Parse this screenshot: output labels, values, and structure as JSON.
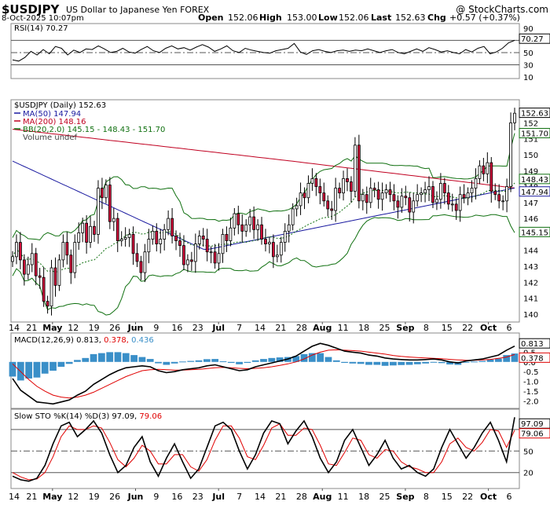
{
  "header": {
    "symbol": "$USDJPY",
    "name": "US Dollar to Japanese Yen FOREX",
    "copyright": "@ StockCharts.com",
    "date": "8-Oct-2025 10:07pm",
    "open_label": "Open",
    "open": "152.06",
    "high_label": "High",
    "high": "153.00",
    "low_label": "Low",
    "low": "152.06",
    "last_label": "Last",
    "last": "152.63",
    "chg_label": "Chg",
    "chg": "+0.57 (+0.37%)"
  },
  "colors": {
    "up_candle": "#ffffff",
    "down_candle": "#d0103a",
    "ma50": "#1a1aa0",
    "ma200": "#c00020",
    "bb": "#107010",
    "macd_line": "#000000",
    "signal_line": "#e00000",
    "histogram": "#3a8fc8",
    "last_marker": "#ffff66"
  },
  "chart_data": [
    {
      "type": "line",
      "panel": "rsi",
      "legend": "RSI(14) 70.27",
      "last_label": "70.27",
      "yticks": [
        "90",
        "70",
        "50",
        "30",
        "10"
      ],
      "ylim": [
        10,
        95
      ],
      "reference_lines": [
        70,
        50,
        30
      ],
      "values": [
        38,
        36,
        42,
        52,
        46,
        55,
        48,
        60,
        57,
        46,
        54,
        50,
        56,
        55,
        61,
        56,
        50,
        52,
        57,
        51,
        49,
        55,
        60,
        53,
        50,
        57,
        61,
        56,
        58,
        54,
        59,
        63,
        59,
        52,
        56,
        61,
        53,
        50,
        57,
        54,
        52,
        50,
        49,
        53,
        55,
        57,
        65,
        51,
        47,
        53,
        55,
        52,
        50,
        53,
        54,
        52,
        54,
        53,
        56,
        53,
        50,
        53,
        55,
        50,
        48,
        52,
        56,
        52,
        58,
        55,
        51,
        53,
        50,
        48,
        55,
        51,
        57,
        60,
        48,
        51,
        57,
        66,
        70
      ]
    },
    {
      "type": "candlestick",
      "panel": "price",
      "legend": {
        "title": "$USDJPY (Daily) 152.63",
        "ma50": "MA(50) 147.94",
        "ma200": "MA(200) 148.16",
        "bb": "BB(20,2.0) 145.15 - 148.43 - 151.70",
        "volume": "Volume undef"
      },
      "yticks": [
        "152",
        "151",
        "150",
        "149",
        "148",
        "147",
        "146",
        "144",
        "143",
        "142",
        "141",
        "140"
      ],
      "ylim": [
        139.6,
        153.3
      ],
      "last_labels": {
        "price": "152.63",
        "bb_upper": "151.70",
        "bb_mid": "148.43",
        "ma50": "147.94",
        "bb_lower": "145.15"
      },
      "close": [
        143.6,
        144.5,
        143.4,
        142.5,
        143.1,
        143.8,
        142.4,
        142.3,
        140.8,
        140.5,
        142.9,
        141.8,
        143.4,
        144.5,
        143.7,
        142.6,
        144.5,
        145.1,
        145.7,
        144.5,
        145.5,
        145.0,
        147.9,
        147.3,
        148.1,
        145.8,
        146.0,
        144.6,
        144.7,
        144.8,
        145.0,
        143.8,
        143.3,
        142.6,
        143.9,
        144.7,
        145.2,
        144.4,
        144.7,
        145.3,
        146.0,
        144.9,
        144.6,
        144.3,
        143.1,
        143.4,
        143.3,
        144.4,
        144.9,
        144.7,
        143.9,
        143.9,
        143.2,
        143.8,
        145.0,
        144.6,
        145.4,
        146.3,
        145.6,
        145.2,
        145.6,
        146.1,
        145.3,
        145.6,
        144.7,
        144.4,
        144.5,
        143.6,
        143.7,
        144.5,
        145.2,
        145.6,
        146.6,
        146.8,
        147.6,
        147.3,
        148.2,
        148.5,
        148.0,
        147.6,
        147.1,
        146.6,
        146.5,
        147.9,
        147.6,
        148.5,
        148.3,
        147.7,
        150.6,
        147.1,
        147.5,
        147.0,
        147.9,
        147.8,
        147.2,
        147.6,
        147.8,
        147.5,
        147.1,
        146.7,
        147.4,
        147.3,
        146.4,
        147.1,
        147.5,
        147.6,
        147.8,
        148.0,
        147.0,
        147.2,
        148.2,
        147.6,
        146.9,
        146.9,
        146.5,
        147.5,
        147.3,
        147.6,
        147.9,
        148.5,
        149.3,
        148.8,
        149.5,
        147.7,
        147.5,
        147.1,
        147.1,
        148.0,
        152.0,
        152.6
      ]
    },
    {
      "type": "line",
      "panel": "macd",
      "legend": {
        "label": "MACD(12,26,9)",
        "macd": "0.813",
        "signal": "0.378",
        "histogram": "0.436"
      },
      "last_labels": {
        "macd": "0.813",
        "signal": "0.378"
      },
      "yticks": [
        "1.0",
        "0.5",
        "0.0",
        "-0.5",
        "-1.0",
        "-1.5",
        "-2.0"
      ],
      "ylim": [
        -2.3,
        1.4
      ],
      "macd": [
        -0.85,
        -1.45,
        -1.75,
        -2.05,
        -2.1,
        -2.15,
        -2.05,
        -1.95,
        -1.7,
        -1.5,
        -1.15,
        -0.9,
        -0.65,
        -0.45,
        -0.3,
        -0.25,
        -0.2,
        -0.25,
        -0.45,
        -0.55,
        -0.5,
        -0.4,
        -0.35,
        -0.3,
        -0.2,
        -0.15,
        -0.25,
        -0.35,
        -0.45,
        -0.4,
        -0.25,
        -0.15,
        -0.05,
        0.05,
        0.15,
        0.3,
        0.55,
        0.8,
        0.95,
        0.85,
        0.7,
        0.55,
        0.5,
        0.45,
        0.35,
        0.3,
        0.2,
        0.15,
        0.12,
        0.1,
        0.1,
        0.12,
        0.15,
        0.1,
        0.0,
        -0.05,
        0.05,
        0.1,
        0.15,
        0.25,
        0.35,
        0.6,
        0.81
      ],
      "signal": [
        -0.1,
        -0.5,
        -0.9,
        -1.25,
        -1.5,
        -1.7,
        -1.8,
        -1.85,
        -1.8,
        -1.7,
        -1.55,
        -1.35,
        -1.15,
        -0.95,
        -0.75,
        -0.6,
        -0.45,
        -0.4,
        -0.38,
        -0.4,
        -0.42,
        -0.42,
        -0.4,
        -0.38,
        -0.34,
        -0.3,
        -0.28,
        -0.3,
        -0.33,
        -0.35,
        -0.33,
        -0.3,
        -0.25,
        -0.18,
        -0.1,
        0.0,
        0.15,
        0.35,
        0.5,
        0.6,
        0.62,
        0.6,
        0.58,
        0.55,
        0.5,
        0.45,
        0.4,
        0.33,
        0.28,
        0.25,
        0.22,
        0.2,
        0.18,
        0.16,
        0.13,
        0.1,
        0.08,
        0.08,
        0.1,
        0.13,
        0.18,
        0.25,
        0.38
      ]
    },
    {
      "type": "line",
      "panel": "stochastic",
      "legend": {
        "label": "Slow STO %K(14) %D(3)",
        "k": "97.09",
        "d": "79.06"
      },
      "last_labels": {
        "k": "97.09",
        "d": "79.06"
      },
      "yticks": [
        "80",
        "50",
        "20"
      ],
      "ylim": [
        0,
        105
      ],
      "k": [
        15,
        10,
        8,
        12,
        30,
        60,
        85,
        90,
        70,
        80,
        92,
        75,
        45,
        20,
        30,
        55,
        70,
        35,
        15,
        40,
        60,
        35,
        12,
        25,
        55,
        85,
        90,
        80,
        50,
        25,
        45,
        75,
        92,
        88,
        60,
        78,
        92,
        70,
        40,
        20,
        35,
        65,
        80,
        55,
        30,
        45,
        65,
        40,
        25,
        30,
        20,
        15,
        25,
        55,
        80,
        60,
        40,
        55,
        75,
        90,
        65,
        35,
        97
      ],
      "d": [
        20,
        14,
        10,
        11,
        20,
        42,
        70,
        85,
        80,
        80,
        85,
        82,
        62,
        38,
        28,
        40,
        58,
        50,
        32,
        32,
        45,
        45,
        28,
        22,
        38,
        65,
        85,
        85,
        68,
        42,
        38,
        58,
        82,
        88,
        72,
        72,
        82,
        80,
        58,
        32,
        30,
        48,
        68,
        65,
        45,
        40,
        52,
        50,
        35,
        28,
        25,
        20,
        20,
        35,
        60,
        68,
        55,
        50,
        62,
        80,
        78,
        55,
        79
      ]
    }
  ],
  "x_axis_labels": [
    "14",
    "21",
    "May",
    "12",
    "19",
    "26",
    "Jun",
    "9",
    "16",
    "23",
    "Jul",
    "7",
    "14",
    "21",
    "28",
    "Aug",
    "11",
    "18",
    "25",
    "Sep",
    "8",
    "15",
    "22",
    "Oct",
    "6"
  ],
  "month_labels": [
    "May",
    "Jun",
    "Jul",
    "Aug",
    "Sep",
    "Oct"
  ]
}
